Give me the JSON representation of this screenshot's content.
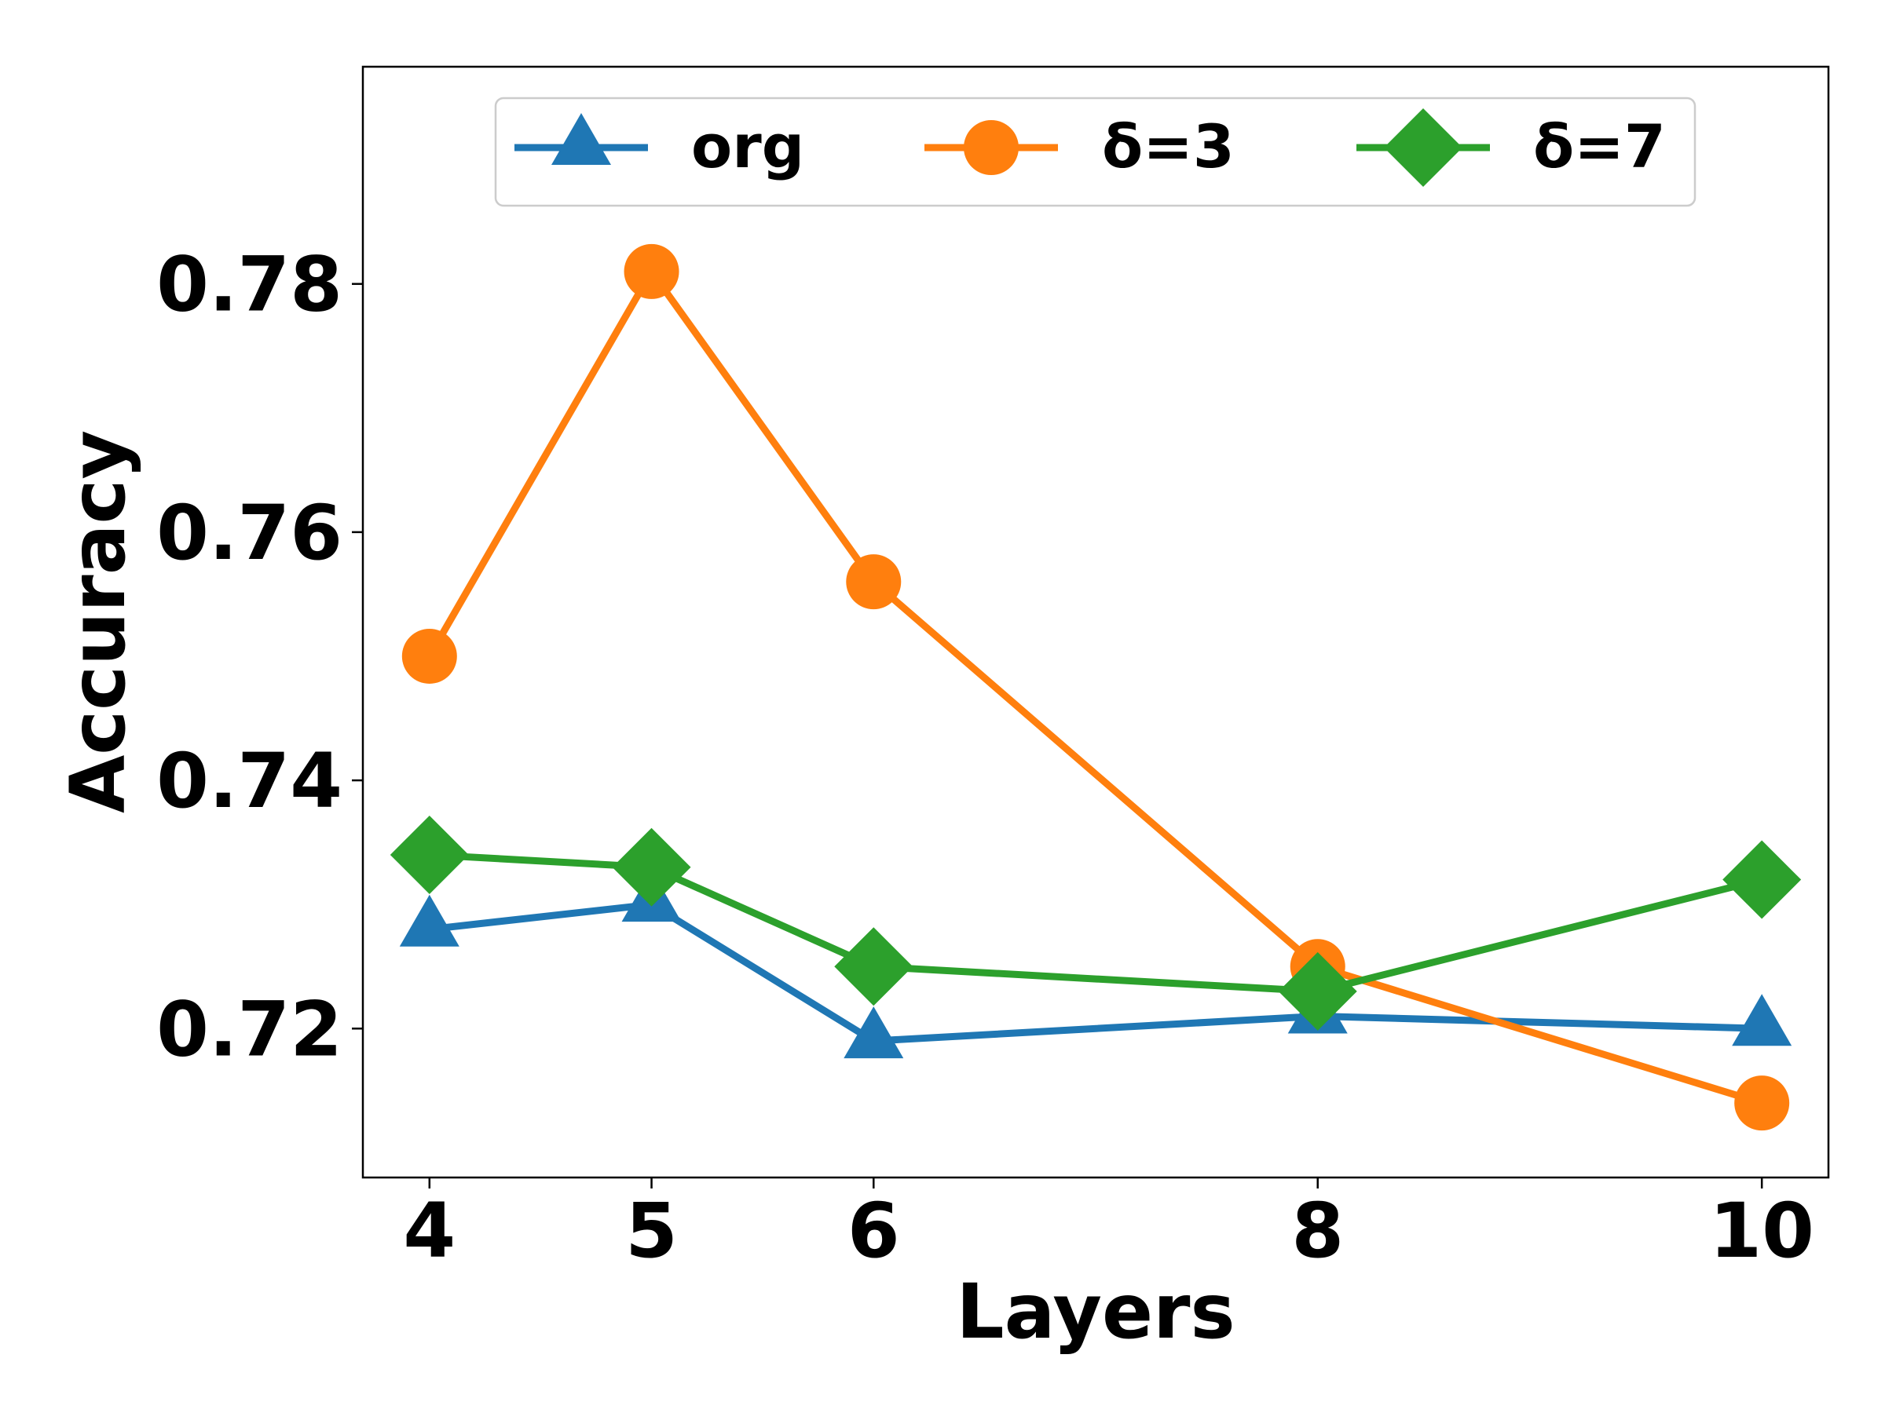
{
  "chart_data": {
    "type": "line",
    "x": [
      4,
      5,
      6,
      8,
      10
    ],
    "x_ticks": [
      "4",
      "5",
      "6",
      "8",
      "10"
    ],
    "xlabel": "Layers",
    "ylabel": "Accuracy",
    "xlim": [
      3.7,
      10.3
    ],
    "ylim": [
      0.708,
      0.7975
    ],
    "y_ticks": [
      0.72,
      0.74,
      0.76,
      0.78
    ],
    "y_tick_labels": [
      "0.72",
      "0.74",
      "0.76",
      "0.78"
    ],
    "grid": false,
    "legend_position": "upper-center",
    "series": [
      {
        "name": "org",
        "color": "#1f77b4",
        "marker": "triangle",
        "values": [
          0.728,
          0.73,
          0.719,
          0.721,
          0.72
        ]
      },
      {
        "name": "δ=3",
        "color": "#ff7f0e",
        "marker": "circle",
        "values": [
          0.75,
          0.781,
          0.756,
          0.725,
          0.714
        ]
      },
      {
        "name": "δ=7",
        "color": "#2ca02c",
        "marker": "diamond",
        "values": [
          0.734,
          0.733,
          0.725,
          0.723,
          0.732
        ]
      }
    ]
  }
}
